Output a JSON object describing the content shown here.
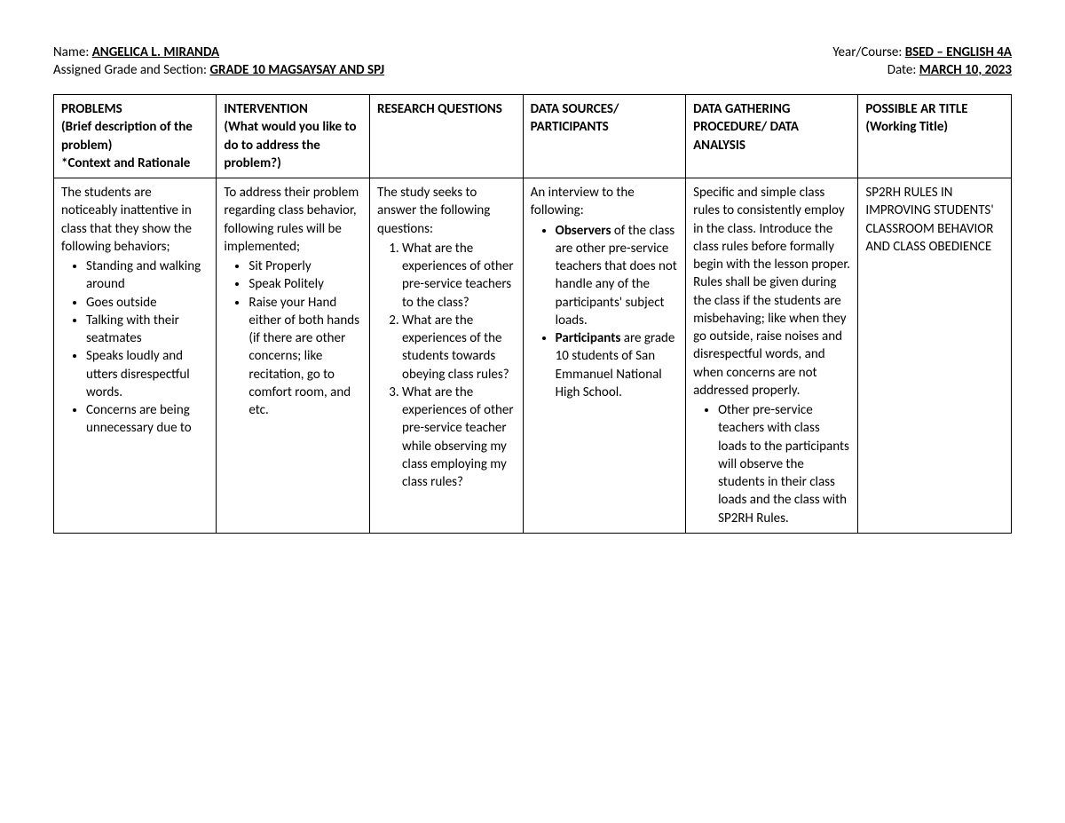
{
  "header": {
    "name_label": "Name: ",
    "name_value": "ANGELICA L. MIRANDA",
    "year_label": "Year/Course: ",
    "year_value": "BSED – ENGLISH 4A",
    "grade_label": "Assigned Grade and Section: ",
    "grade_value": "GRADE 10 MAGSAYSAY AND SPJ",
    "date_label": "Date: ",
    "date_value": "MARCH 10, 2023"
  },
  "columns": {
    "c1a": "PROBLEMS",
    "c1b": "(Brief description of the problem)",
    "c1c": "*Context and Rationale",
    "c2a": "INTERVENTION",
    "c2b": "(What would you like to do to address the problem?)",
    "c3": "RESEARCH QUESTIONS",
    "c4": "DATA SOURCES/ PARTICIPANTS",
    "c5": "DATA GATHERING PROCEDURE/ DATA ANALYSIS",
    "c6a": "POSSIBLE AR TITLE",
    "c6b": "(Working Title)"
  },
  "row": {
    "problems_intro": "The students are noticeably inattentive in class that they show the following behaviors;",
    "problems_list": {
      "i1": "Standing and walking around",
      "i2": "Goes outside",
      "i3": "Talking with their seatmates",
      "i4": "Speaks loudly and utters disrespectful words.",
      "i5": "Concerns are being unnecessary due to"
    },
    "intervention_intro": "To address their problem regarding class behavior, following rules will be implemented;",
    "intervention_list": {
      "i1": "Sit Properly",
      "i2": "Speak Politely",
      "i3": "Raise your Hand either of both hands (if there are other concerns; like recitation, go to comfort room, and etc."
    },
    "questions_intro": "The study seeks to answer the following questions:",
    "questions_list": {
      "q1": "What are the experiences of other pre-service teachers to the class?",
      "q2": "What are the experiences of the students towards obeying class rules?",
      "q3": "What are the experiences of other pre-service teacher while observing my class employing my class rules?"
    },
    "sources_intro": "An interview to the following:",
    "sources_list": {
      "s1a": "Observers",
      "s1b": " of the class are other pre-service teachers that does not handle any of the participants' subject loads.",
      "s2a": "Participants",
      "s2b": " are grade 10 students of San Emmanuel National High School."
    },
    "analysis_intro": "Specific and simple class rules to consistently employ in the class. Introduce the class rules before formally begin with the lesson proper. Rules shall be given during the class if the students are misbehaving; like when they go outside, raise noises and disrespectful words, and when concerns are not addressed properly.",
    "analysis_list": {
      "a1": "Other pre-service teachers with class loads to the participants will observe the students in their class loads and the class with SP2RH Rules."
    },
    "title": "SP2RH RULES IN IMPROVING STUDENTS' CLASSROOM BEHAVIOR AND CLASS OBEDIENCE"
  }
}
